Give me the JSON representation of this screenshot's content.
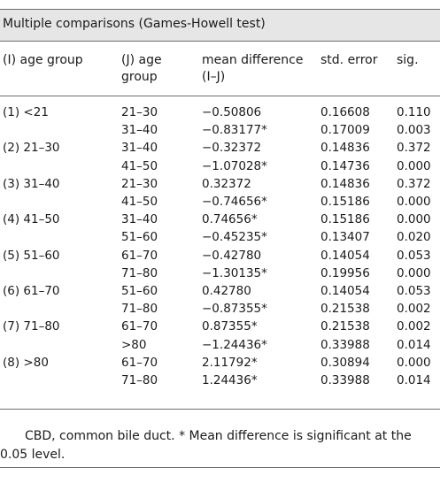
{
  "table": {
    "caption": "Multiple comparisons (Games-Howell test)",
    "headers": {
      "i_group": "(I) age group",
      "j_group_line1": "(J) age",
      "j_group_line2": "group",
      "mean_diff_line1": "mean difference",
      "mean_diff_line2": "(I–J)",
      "std_error": "std. error",
      "sig": "sig."
    },
    "rows": [
      {
        "i": "(1) <21",
        "j": "21–30",
        "md": "−0.50806",
        "se": "0.16608",
        "sig": "0.110"
      },
      {
        "i": "",
        "j": "31–40",
        "md": "−0.83177*",
        "se": "0.17009",
        "sig": "0.003"
      },
      {
        "i": "(2) 21–30",
        "j": "31–40",
        "md": "−0.32372",
        "se": "0.14836",
        "sig": "0.372"
      },
      {
        "i": "",
        "j": "41–50",
        "md": "−1.07028*",
        "se": "0.14736",
        "sig": "0.000"
      },
      {
        "i": "(3) 31–40",
        "j": "21–30",
        "md": "0.32372",
        "se": "0.14836",
        "sig": "0.372"
      },
      {
        "i": "",
        "j": "41–50",
        "md": "−0.74656*",
        "se": "0.15186",
        "sig": "0.000"
      },
      {
        "i": "(4) 41–50",
        "j": "31–40",
        "md": "0.74656*",
        "se": "0.15186",
        "sig": "0.000"
      },
      {
        "i": "",
        "j": "51–60",
        "md": "−0.45235*",
        "se": "0.13407",
        "sig": "0.020"
      },
      {
        "i": "(5) 51–60",
        "j": "61–70",
        "md": "−0.42780",
        "se": "0.14054",
        "sig": "0.053"
      },
      {
        "i": "",
        "j": "71–80",
        "md": "−1.30135*",
        "se": "0.19956",
        "sig": "0.000"
      },
      {
        "i": "(6) 61–70",
        "j": "51–60",
        "md": "0.42780",
        "se": "0.14054",
        "sig": "0.053"
      },
      {
        "i": "",
        "j": "71–80",
        "md": "−0.87355*",
        "se": "0.21538",
        "sig": "0.002"
      },
      {
        "i": "(7) 71–80",
        "j": "61–70",
        "md": "0.87355*",
        "se": "0.21538",
        "sig": "0.002"
      },
      {
        "i": "",
        "j": ">80",
        "md": "−1.24436*",
        "se": "0.33988",
        "sig": "0.014"
      },
      {
        "i": "(8) >80",
        "j": "61–70",
        "md": "2.11792*",
        "se": "0.30894",
        "sig": "0.000"
      },
      {
        "i": "",
        "j": "71–80",
        "md": "1.24436*",
        "se": "0.33988",
        "sig": "0.014"
      }
    ]
  },
  "footnote": {
    "line1": "CBD, common bile duct. * Mean difference is significant at the",
    "line2": "0.05 level."
  }
}
